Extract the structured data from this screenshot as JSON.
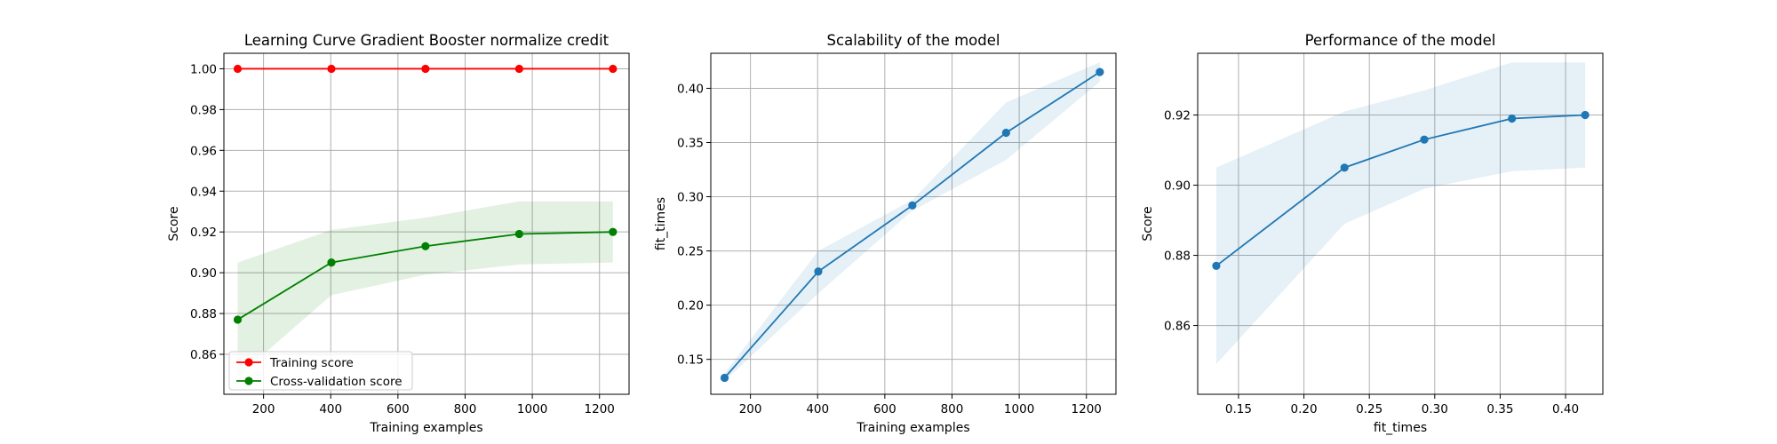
{
  "chart_data": [
    {
      "type": "line",
      "title": "Learning Curve Gradient Booster normalize credit",
      "xlabel": "Training examples",
      "ylabel": "Score",
      "xlim": [
        82,
        1288
      ],
      "ylim": [
        0.8404,
        1.0076
      ],
      "xticks": [
        200,
        400,
        600,
        800,
        1000,
        1200
      ],
      "yticks": [
        0.86,
        0.88,
        0.9,
        0.92,
        0.94,
        0.96,
        0.98,
        1.0
      ],
      "xtick_labels": [
        "200",
        "400",
        "600",
        "800",
        "1000",
        "1200"
      ],
      "ytick_labels": [
        "0.86",
        "0.88",
        "0.90",
        "0.92",
        "0.94",
        "0.96",
        "0.98",
        "1.00"
      ],
      "grid": true,
      "legend": "lower-left",
      "x": [
        123,
        402,
        682,
        961,
        1240
      ],
      "series": [
        {
          "name": "Training score",
          "color": "#ff0000",
          "values": [
            1.0,
            1.0,
            1.0,
            1.0,
            1.0
          ],
          "band_low": [
            1.0,
            1.0,
            1.0,
            1.0,
            1.0
          ],
          "band_high": [
            1.0,
            1.0,
            1.0,
            1.0,
            1.0
          ]
        },
        {
          "name": "Cross-validation score",
          "color": "#008000",
          "values": [
            0.877,
            0.905,
            0.913,
            0.919,
            0.92
          ],
          "band_low": [
            0.849,
            0.889,
            0.899,
            0.904,
            0.905
          ],
          "band_high": [
            0.905,
            0.921,
            0.927,
            0.935,
            0.935
          ]
        }
      ]
    },
    {
      "type": "line",
      "title": "Scalability of the model",
      "xlabel": "Training examples",
      "ylabel": "fit_times",
      "xlim": [
        82,
        1288
      ],
      "ylim": [
        0.1178,
        0.4323
      ],
      "xticks": [
        200,
        400,
        600,
        800,
        1000,
        1200
      ],
      "yticks": [
        0.15,
        0.2,
        0.25,
        0.3,
        0.35,
        0.4
      ],
      "xtick_labels": [
        "200",
        "400",
        "600",
        "800",
        "1000",
        "1200"
      ],
      "ytick_labels": [
        "0.15",
        "0.20",
        "0.25",
        "0.30",
        "0.35",
        "0.40"
      ],
      "grid": true,
      "x": [
        123,
        402,
        682,
        961,
        1240
      ],
      "series": [
        {
          "color": "#1f77b4",
          "values": [
            0.133,
            0.231,
            0.292,
            0.359,
            0.415
          ],
          "band_low": [
            0.13,
            0.211,
            0.287,
            0.334,
            0.406
          ],
          "band_high": [
            0.137,
            0.25,
            0.297,
            0.387,
            0.424
          ]
        }
      ]
    },
    {
      "type": "line",
      "title": "Performance of the model",
      "xlabel": "fit_times",
      "ylabel": "Score",
      "xlim": [
        0.1188,
        0.4285
      ],
      "ylim": [
        0.8404,
        0.9376
      ],
      "xticks": [
        0.15,
        0.2,
        0.25,
        0.3,
        0.35,
        0.4
      ],
      "yticks": [
        0.86,
        0.88,
        0.9,
        0.92
      ],
      "xtick_labels": [
        "0.15",
        "0.20",
        "0.25",
        "0.30",
        "0.35",
        "0.40"
      ],
      "ytick_labels": [
        "0.86",
        "0.88",
        "0.90",
        "0.92"
      ],
      "grid": true,
      "x": [
        0.133,
        0.231,
        0.292,
        0.359,
        0.415
      ],
      "series": [
        {
          "color": "#1f77b4",
          "values": [
            0.877,
            0.905,
            0.913,
            0.919,
            0.92
          ],
          "band_low": [
            0.849,
            0.889,
            0.899,
            0.904,
            0.905
          ],
          "band_high": [
            0.905,
            0.921,
            0.927,
            0.935,
            0.935
          ]
        }
      ]
    }
  ]
}
